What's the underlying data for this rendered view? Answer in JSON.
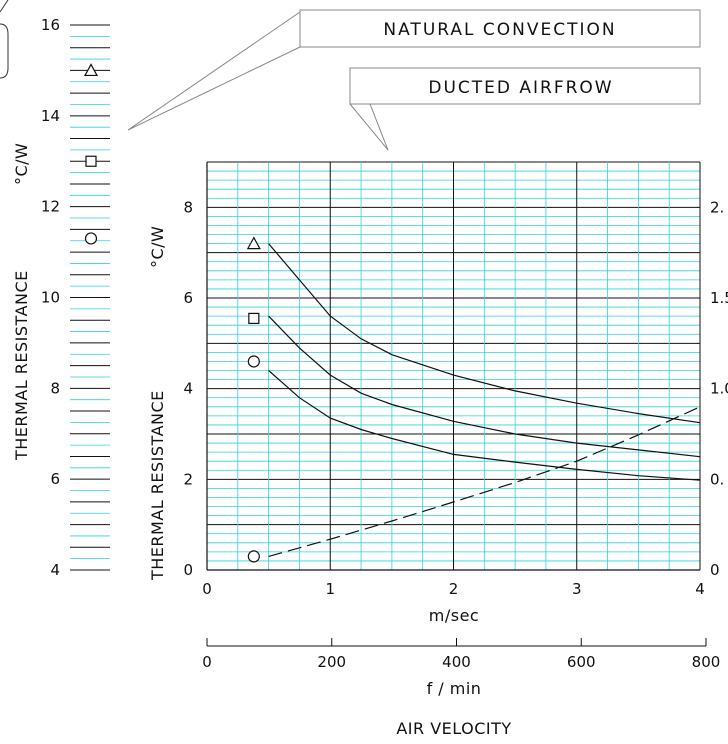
{
  "chart_data": [
    {
      "type": "scatter",
      "title": "",
      "ylabel": "THERMAL RESISTANCE",
      "yunit": "°C/W",
      "ylim": [
        4,
        16
      ],
      "yticks": [
        4,
        6,
        8,
        10,
        12,
        14,
        16
      ],
      "callout": "NATURAL CONVECTION",
      "series": [
        {
          "marker": "triangle",
          "values": [
            15.0
          ]
        },
        {
          "marker": "square",
          "values": [
            13.0
          ]
        },
        {
          "marker": "circle",
          "values": [
            11.3
          ]
        }
      ]
    },
    {
      "type": "line",
      "title": "",
      "callout": "DUCTED AIRFROW",
      "ylabel": "THERMAL RESISTANCE",
      "yunit": "°C/W",
      "ylim": [
        0,
        9
      ],
      "yticks": [
        0,
        2,
        4,
        6,
        8
      ],
      "xlabel": "m/sec",
      "xlim": [
        0,
        4
      ],
      "xticks": [
        0,
        1,
        2,
        3,
        4
      ],
      "x2label": "f / min",
      "x2lim": [
        0,
        800
      ],
      "x2ticks": [
        0,
        200,
        400,
        600,
        800
      ],
      "axis_title": "AIR VELOCITY",
      "right_ytick_labels": [
        "2.",
        "1.5",
        "1.0",
        "0.",
        "0"
      ],
      "right_yticks_at": [
        8,
        6,
        4,
        2,
        0
      ],
      "grid": true,
      "series": [
        {
          "marker": "triangle",
          "marker_point": [
            0.38,
            7.2
          ],
          "x": [
            0.5,
            0.75,
            1.0,
            1.25,
            1.5,
            2.0,
            2.5,
            3.0,
            3.5,
            4.0
          ],
          "y": [
            7.2,
            6.4,
            5.6,
            5.1,
            4.75,
            4.3,
            3.95,
            3.68,
            3.45,
            3.25
          ]
        },
        {
          "marker": "square",
          "marker_point": [
            0.38,
            5.55
          ],
          "x": [
            0.5,
            0.75,
            1.0,
            1.25,
            1.5,
            2.0,
            2.5,
            3.0,
            3.5,
            4.0
          ],
          "y": [
            5.6,
            4.9,
            4.3,
            3.9,
            3.65,
            3.28,
            3.0,
            2.8,
            2.65,
            2.5
          ]
        },
        {
          "marker": "circle",
          "marker_point": [
            0.38,
            4.6
          ],
          "x": [
            0.5,
            0.75,
            1.0,
            1.25,
            1.5,
            2.0,
            2.5,
            3.0,
            3.5,
            4.0
          ],
          "y": [
            4.4,
            3.8,
            3.35,
            3.1,
            2.9,
            2.55,
            2.38,
            2.22,
            2.08,
            1.98
          ]
        },
        {
          "marker": "circle",
          "style": "dashed",
          "marker_point": [
            0.38,
            0.3
          ],
          "x": [
            0.5,
            1.0,
            1.5,
            2.0,
            2.5,
            3.0,
            3.5,
            4.0
          ],
          "y": [
            0.3,
            0.68,
            1.08,
            1.5,
            1.93,
            2.4,
            2.98,
            3.6
          ]
        }
      ]
    }
  ]
}
